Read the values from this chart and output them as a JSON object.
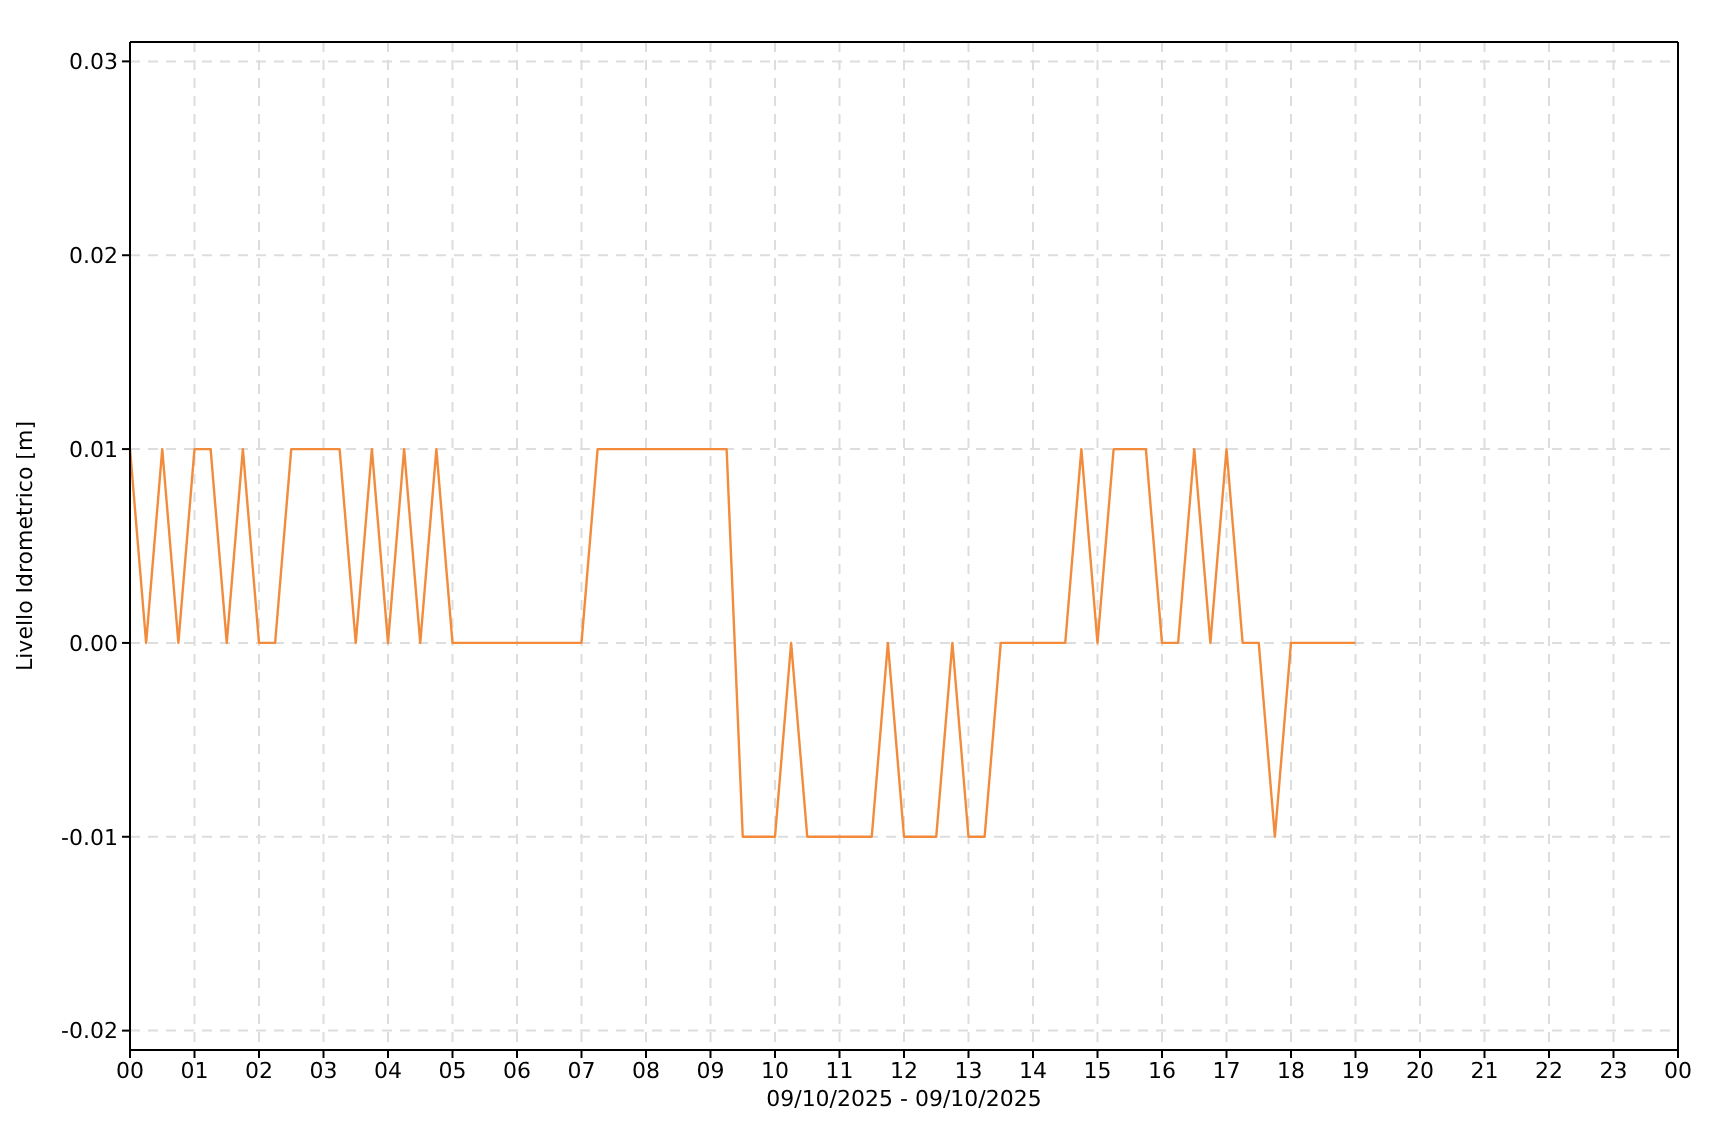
{
  "chart_data": {
    "type": "line",
    "xlabel": "09/10/2025 - 09/10/2025",
    "ylabel": "Livello Idrometrico [m]",
    "x": [
      0,
      0.25,
      0.5,
      0.75,
      1,
      1.25,
      1.5,
      1.75,
      2,
      2.25,
      2.5,
      2.75,
      3,
      3.25,
      3.5,
      3.75,
      4,
      4.25,
      4.5,
      4.75,
      5,
      5.25,
      5.5,
      5.75,
      6,
      6.25,
      6.5,
      6.75,
      7,
      7.25,
      7.5,
      7.75,
      8,
      8.25,
      8.5,
      8.75,
      9,
      9.25,
      9.5,
      9.75,
      10,
      10.25,
      10.5,
      10.75,
      11,
      11.25,
      11.5,
      11.75,
      12,
      12.25,
      12.5,
      12.75,
      13,
      13.25,
      13.5,
      13.75,
      14,
      14.25,
      14.5,
      14.75,
      15,
      15.25,
      15.5,
      15.75,
      16,
      16.25,
      16.5,
      16.75,
      17,
      17.25,
      17.5,
      17.75,
      18,
      18.25,
      18.5,
      18.75,
      19
    ],
    "series": [
      {
        "color": "#f28c3c",
        "values": [
          0.01,
          0,
          0.01,
          0,
          0.01,
          0.01,
          0,
          0.01,
          0,
          0,
          0.01,
          0.01,
          0.01,
          0.01,
          0,
          0.01,
          0,
          0.01,
          0,
          0.01,
          0,
          0,
          0,
          0,
          0,
          0,
          0,
          0,
          0,
          0.01,
          0.01,
          0.01,
          0.01,
          0.01,
          0.01,
          0.01,
          0.01,
          0.01,
          -0.01,
          -0.01,
          -0.01,
          0,
          -0.01,
          -0.01,
          -0.01,
          -0.01,
          -0.01,
          0,
          -0.01,
          -0.01,
          -0.01,
          0,
          -0.01,
          -0.01,
          0,
          0,
          0,
          0,
          0,
          0.01,
          0,
          0.01,
          0.01,
          0.01,
          0,
          0,
          0.01,
          0,
          0.01,
          0,
          0,
          -0.01,
          0,
          0,
          0,
          0,
          0
        ]
      }
    ],
    "xlim": [
      0,
      24
    ],
    "xticks": [
      {
        "value": 0,
        "label": "00"
      },
      {
        "value": 1,
        "label": "01"
      },
      {
        "value": 2,
        "label": "02"
      },
      {
        "value": 3,
        "label": "03"
      },
      {
        "value": 4,
        "label": "04"
      },
      {
        "value": 5,
        "label": "05"
      },
      {
        "value": 6,
        "label": "06"
      },
      {
        "value": 7,
        "label": "07"
      },
      {
        "value": 8,
        "label": "08"
      },
      {
        "value": 9,
        "label": "09"
      },
      {
        "value": 10,
        "label": "10"
      },
      {
        "value": 11,
        "label": "11"
      },
      {
        "value": 12,
        "label": "12"
      },
      {
        "value": 13,
        "label": "13"
      },
      {
        "value": 14,
        "label": "14"
      },
      {
        "value": 15,
        "label": "15"
      },
      {
        "value": 16,
        "label": "16"
      },
      {
        "value": 17,
        "label": "17"
      },
      {
        "value": 18,
        "label": "18"
      },
      {
        "value": 19,
        "label": "19"
      },
      {
        "value": 20,
        "label": "20"
      },
      {
        "value": 21,
        "label": "21"
      },
      {
        "value": 22,
        "label": "22"
      },
      {
        "value": 23,
        "label": "23"
      },
      {
        "value": 24,
        "label": "00"
      }
    ],
    "ylim": [
      -0.021,
      0.031
    ],
    "yticks": [
      {
        "value": -0.02,
        "label": "-0.02"
      },
      {
        "value": -0.01,
        "label": "-0.01"
      },
      {
        "value": 0,
        "label": "0.00"
      },
      {
        "value": 0.01,
        "label": "0.01"
      },
      {
        "value": 0.02,
        "label": "0.02"
      },
      {
        "value": 0.03,
        "label": "0.03"
      }
    ],
    "grid": true,
    "legend": false,
    "marker": "none",
    "line_style": "solid"
  }
}
